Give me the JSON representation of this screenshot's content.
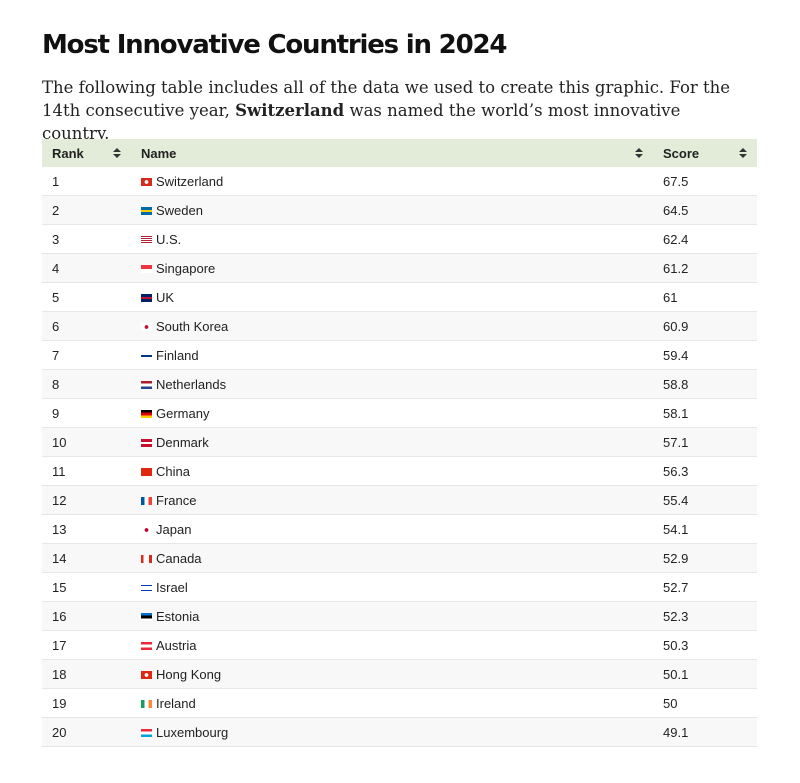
{
  "header": {
    "title": "Most Innovative Countries in 2024",
    "intro": {
      "before": "The following table includes all of the data we used to create this graphic. For the 14th consecutive year, ",
      "bold": "Switzerland",
      "after": " was named the world’s most innovative country."
    }
  },
  "table": {
    "columns": [
      "Rank",
      "Name",
      "Score"
    ],
    "rows": [
      [
        1,
        "Switzerland",
        67.5
      ],
      [
        2,
        "Sweden",
        64.5
      ],
      [
        3,
        "U.S.",
        62.4
      ],
      [
        4,
        "Singapore",
        61.2
      ],
      [
        5,
        "UK",
        61
      ],
      [
        6,
        "South Korea",
        60.9
      ],
      [
        7,
        "Finland",
        59.4
      ],
      [
        8,
        "Netherlands",
        58.8
      ],
      [
        9,
        "Germany",
        58.1
      ],
      [
        10,
        "Denmark",
        57.1
      ],
      [
        11,
        "China",
        56.3
      ],
      [
        12,
        "France",
        55.4
      ],
      [
        13,
        "Japan",
        54.1
      ],
      [
        14,
        "Canada",
        52.9
      ],
      [
        15,
        "Israel",
        52.7
      ],
      [
        16,
        "Estonia",
        52.3
      ],
      [
        17,
        "Austria",
        50.3
      ],
      [
        18,
        "Hong Kong",
        50.1
      ],
      [
        19,
        "Ireland",
        50
      ],
      [
        20,
        "Luxembourg",
        49.1
      ]
    ]
  }
}
